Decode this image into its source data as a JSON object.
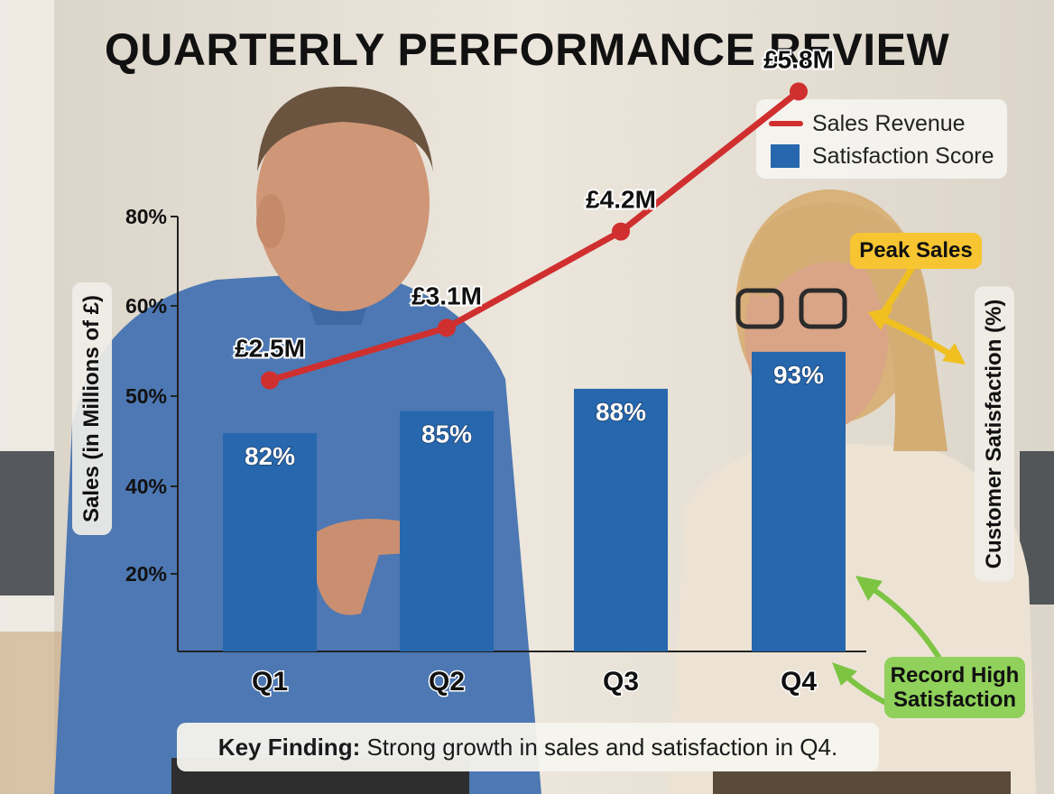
{
  "colors": {
    "sales_line": "#d02f2f",
    "satisfaction_bar": "#2667ad",
    "peak_callout": "#f6c531",
    "record_callout": "#8fd15a",
    "peak_arrow": "#f0c020",
    "record_arrow": "#7cc442"
  },
  "chart_data": {
    "type": "bar",
    "title": "QUARTERLY PERFORMANCE REVIEW",
    "categories": [
      "Q1",
      "Q2",
      "Q3",
      "Q4"
    ],
    "y_axis_label": "Sales (in Millions of £)",
    "y2_axis_label": "Customer Satisfaction (%)",
    "y_ticks": [
      "20%",
      "40%",
      "50%",
      "60%",
      "80%"
    ],
    "y_ticks_note": "tick labels printed as shown in the original",
    "series": [
      {
        "name": "Sales Revenue",
        "kind": "line",
        "values": [
          2.5,
          3.1,
          4.2,
          5.8
        ],
        "labels": [
          "£2.5M",
          "£3.1M",
          "£4.2M",
          "£5.8M"
        ]
      },
      {
        "name": "Satisfaction Score",
        "kind": "bar",
        "values": [
          82,
          85,
          88,
          93
        ],
        "labels": [
          "82%",
          "85%",
          "88%",
          "93%"
        ]
      }
    ],
    "legend": {
      "position": "top-right",
      "entries": [
        "Sales Revenue",
        "Satisfaction Score"
      ]
    },
    "annotations": {
      "peak": "Peak Sales",
      "record_line1": "Record High",
      "record_line2": "Satisfaction"
    },
    "key_finding_label": "Key Finding:",
    "key_finding_text": "Strong growth in sales and satisfaction in Q4."
  }
}
